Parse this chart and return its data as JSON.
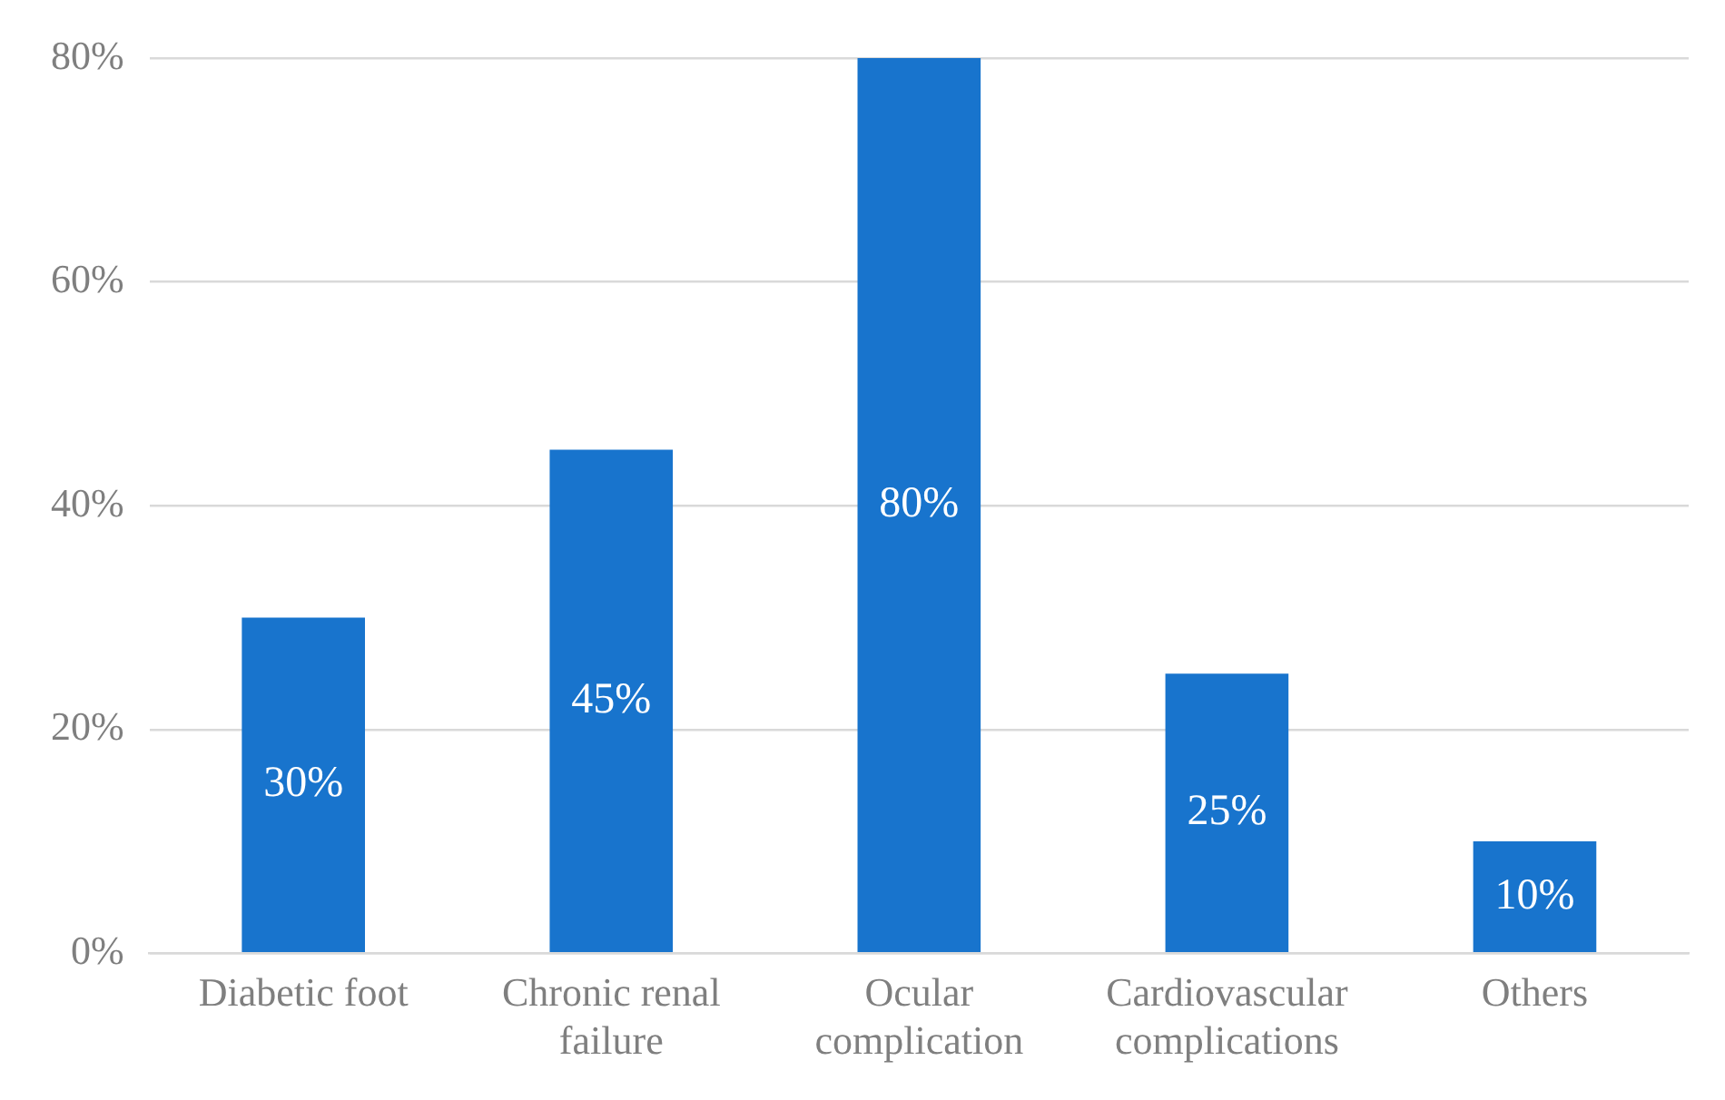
{
  "chart_data": {
    "type": "bar",
    "categories": [
      "Diabetic foot",
      "Chronic renal failure",
      "Ocular complication",
      "Cardiovascular complications",
      "Others"
    ],
    "values": [
      30,
      45,
      80,
      25,
      10
    ],
    "color": "#1874cd",
    "value_labels": [
      "30%",
      "45%",
      "80%",
      "25%",
      "10%"
    ],
    "ylim": [
      0,
      80
    ],
    "yticks": [
      {
        "value": 0,
        "label": "0%"
      },
      {
        "value": 20,
        "label": "20%"
      },
      {
        "value": 40,
        "label": "40%"
      },
      {
        "value": 60,
        "label": "60%"
      },
      {
        "value": 80,
        "label": "80%"
      }
    ],
    "grid": "y"
  }
}
